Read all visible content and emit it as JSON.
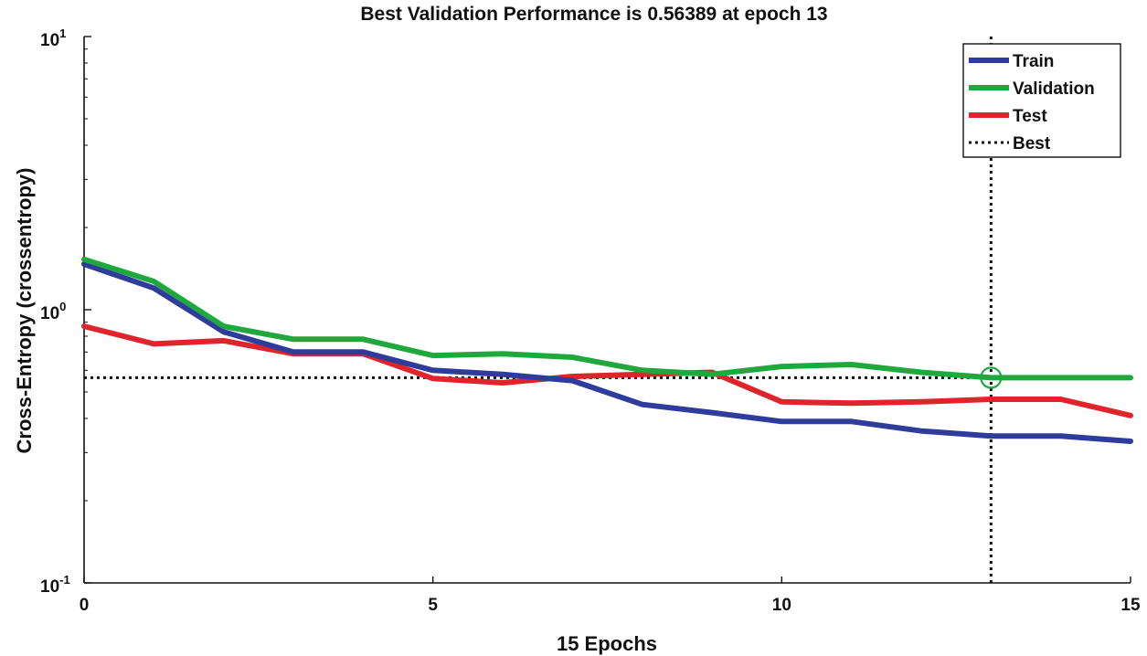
{
  "chart_data": {
    "type": "line",
    "title": "Best Validation Performance is 0.56389 at epoch 13",
    "xlabel": "15 Epochs",
    "ylabel": "Cross-Entropy  (crossentropy)",
    "xlim": [
      0,
      15
    ],
    "ylim": [
      0.1,
      10
    ],
    "yscale": "log",
    "x_ticks": [
      0,
      5,
      10,
      15
    ],
    "y_ticks": [
      {
        "value": 0.1,
        "base": "10",
        "exp": "-1"
      },
      {
        "value": 1,
        "base": "10",
        "exp": "0"
      },
      {
        "value": 10,
        "base": "10",
        "exp": "1"
      }
    ],
    "x": [
      0,
      1,
      2,
      3,
      4,
      5,
      6,
      7,
      8,
      9,
      10,
      11,
      12,
      13,
      14,
      15
    ],
    "series": [
      {
        "name": "Train",
        "color": "#2e3d9c",
        "values": [
          1.47,
          1.2,
          0.83,
          0.7,
          0.7,
          0.6,
          0.58,
          0.55,
          0.45,
          0.42,
          0.39,
          0.39,
          0.36,
          0.345,
          0.345,
          0.33
        ]
      },
      {
        "name": "Validation",
        "color": "#1fa83c",
        "values": [
          1.53,
          1.27,
          0.87,
          0.78,
          0.78,
          0.68,
          0.69,
          0.67,
          0.6,
          0.58,
          0.62,
          0.63,
          0.59,
          0.564,
          0.564,
          0.564
        ]
      },
      {
        "name": "Test",
        "color": "#e0242b",
        "values": [
          0.87,
          0.75,
          0.77,
          0.69,
          0.69,
          0.56,
          0.54,
          0.57,
          0.58,
          0.59,
          0.46,
          0.455,
          0.46,
          0.47,
          0.47,
          0.41
        ]
      }
    ],
    "best": {
      "label": "Best",
      "epoch": 13,
      "value": 0.56389,
      "color": "#111111"
    },
    "legend_position": "top-right",
    "grid": false
  }
}
